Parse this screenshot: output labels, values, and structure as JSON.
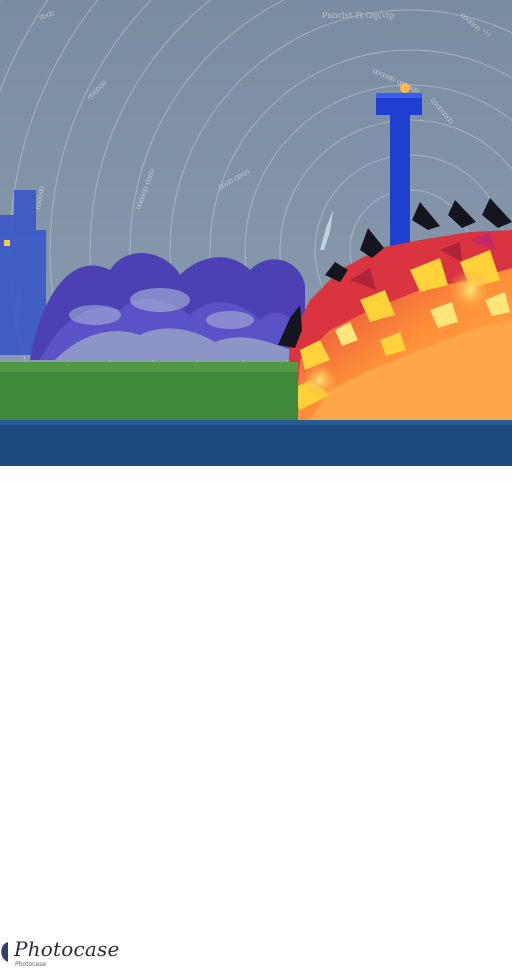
{
  "footer": {
    "brand_name": "Photocase",
    "brand_tagline": "Photocase"
  },
  "scene": {
    "caption_text": "Pnncist Tt Oqcvip",
    "colors": {
      "sky": "#7e8fa3",
      "ground_green": "#3f8a3a",
      "water": "#1d4a7e",
      "tower": "#1f3fd0",
      "fire_red": "#d23a3a",
      "fire_orange": "#ff9b3a",
      "fire_yellow": "#ffd23a",
      "cloud_purple": "#4a3fb0"
    },
    "elements": [
      "sky-with-concentric-arcs",
      "blue-tower",
      "purple-clouds",
      "city-skyline",
      "fire-burst",
      "flying-birds",
      "grass-field",
      "water-strip"
    ]
  }
}
